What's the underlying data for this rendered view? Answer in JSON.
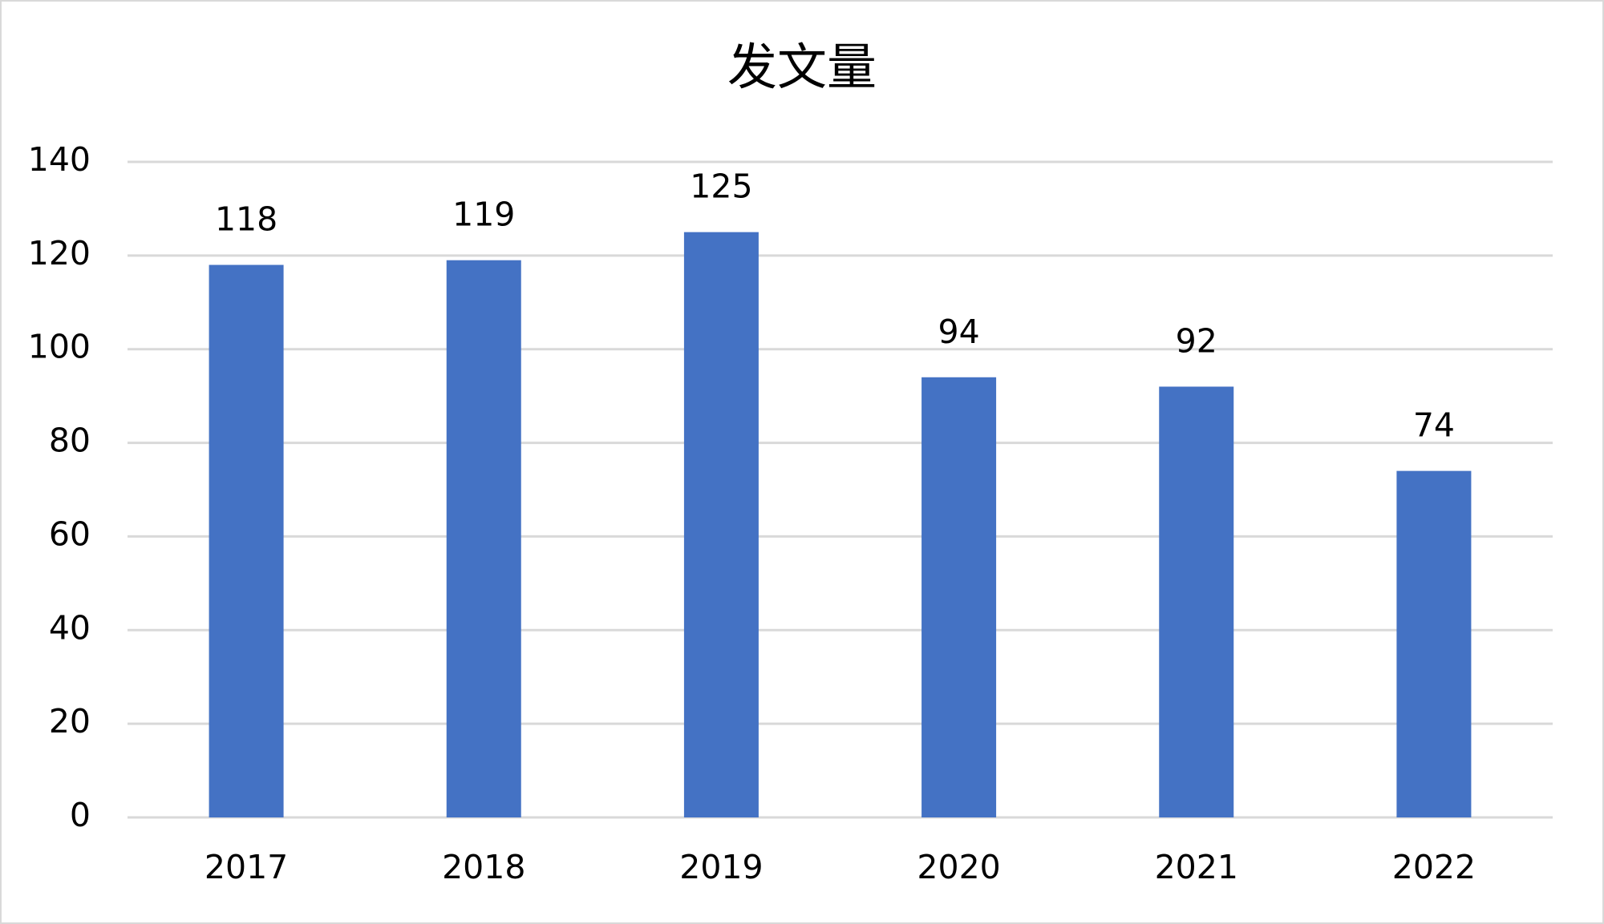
{
  "chart_data": {
    "type": "bar",
    "title": "发文量",
    "categories": [
      "2017",
      "2018",
      "2019",
      "2020",
      "2021",
      "2022"
    ],
    "values": [
      118,
      119,
      125,
      94,
      92,
      74
    ],
    "color": "#4472c4",
    "ylim": [
      0,
      140
    ],
    "yticks": [
      0,
      20,
      40,
      60,
      80,
      100,
      120,
      140
    ],
    "grid": true
  }
}
